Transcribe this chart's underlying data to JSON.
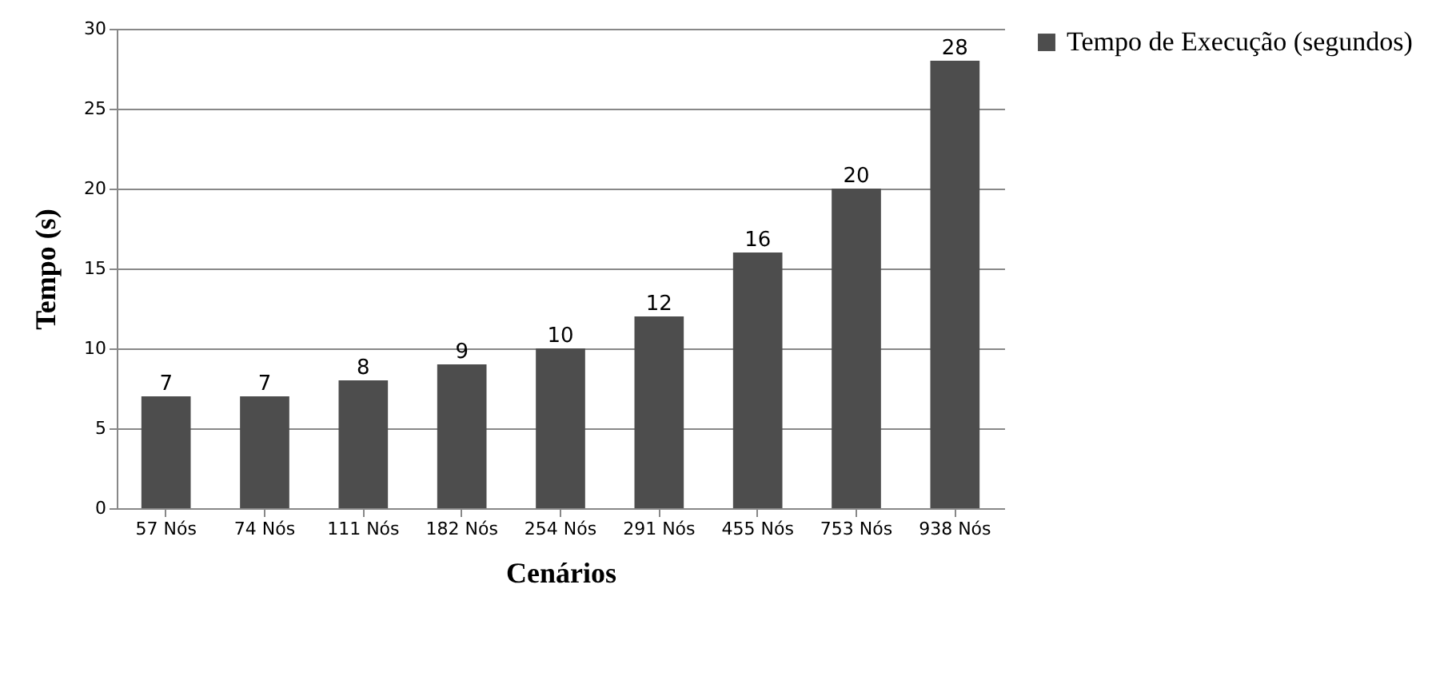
{
  "chart_data": {
    "type": "bar",
    "xlabel": "Cenários",
    "ylabel": "Tempo (s)",
    "categories": [
      "57 Nós",
      "74 Nós",
      "111 Nós",
      "182 Nós",
      "254 Nós",
      "291 Nós",
      "455 Nós",
      "753 Nós",
      "938 Nós"
    ],
    "series": [
      {
        "name": "Tempo de Execução (segundos)",
        "color": "#4d4d4d",
        "values": [
          7,
          7,
          8,
          9,
          10,
          12,
          16,
          20,
          28
        ]
      }
    ],
    "ylim": [
      0,
      30
    ],
    "yticks": [
      0,
      5,
      10,
      15,
      20,
      25,
      30
    ],
    "grid": "y",
    "legend": "right",
    "data_labels": true
  }
}
